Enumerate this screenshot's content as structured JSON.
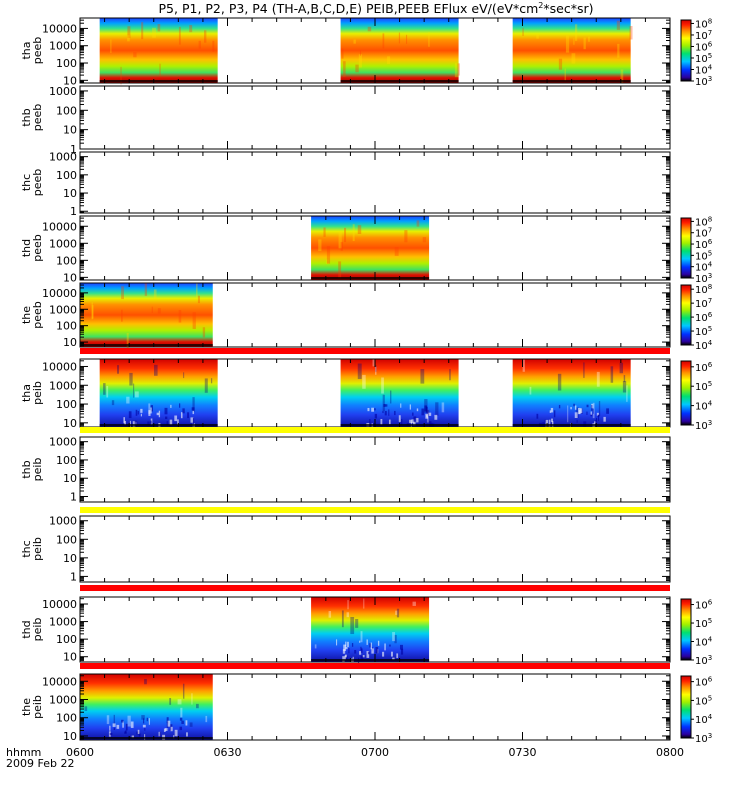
{
  "title": "P5, P1, P2, P3, P4 (TH-A,B,C,D,E) PEIB,PEEB EFlux eV/(eV*cm",
  "title_sup": "2",
  "title_end": "*sec*sr)",
  "footer": {
    "time_label": "hhmm",
    "date": "2009 Feb 22"
  },
  "chart_data": {
    "type": "heatmap",
    "title": "P5, P1, P2, P3, P4 (TH-A,B,C,D,E) PEIB,PEEB EFlux eV/(eV*cm^2*sec*sr)",
    "x_range": [
      "06:00",
      "08:00"
    ],
    "x_ticks": [
      "0600",
      "0630",
      "0700",
      "0730",
      "0800"
    ],
    "x_tick_minutes": [
      0,
      30,
      60,
      90,
      120
    ],
    "x_label": "hhmm",
    "date": "2009 Feb 22",
    "y_scale": "log",
    "colorscale": "rainbow",
    "panels": [
      {
        "name": "thapeeb",
        "lines": [
          "tha",
          "peeb"
        ],
        "yticks": [
          "10",
          "100",
          "1000",
          "10000"
        ],
        "ytick_vals": [
          10,
          100,
          1000,
          10000
        ],
        "yrange": [
          7,
          40000
        ],
        "cbar": {
          "labels": [
            "10",
            "10",
            "10",
            "10",
            "10",
            "10"
          ],
          "exps": [
            "3",
            "4",
            "5",
            "6",
            "7",
            "8"
          ],
          "range_exp": [
            3,
            8.3
          ]
        },
        "segments": [
          [
            4,
            28
          ],
          [
            53,
            77
          ],
          [
            88,
            112
          ]
        ],
        "kind": "electron"
      },
      {
        "name": "thbpeeb",
        "lines": [
          "thb",
          "peeb"
        ],
        "yticks": [
          "1",
          "10",
          "100",
          "1000"
        ],
        "ytick_vals": [
          1,
          10,
          100,
          1000
        ],
        "yrange": [
          1,
          1800
        ],
        "segments": []
      },
      {
        "name": "thcpeeb",
        "lines": [
          "thc",
          "peeb"
        ],
        "yticks": [
          "1",
          "10",
          "100",
          "1000"
        ],
        "ytick_vals": [
          1,
          10,
          100,
          1000
        ],
        "yrange": [
          0.8,
          1800
        ],
        "segments": []
      },
      {
        "name": "thdpeeb",
        "lines": [
          "thd",
          "peeb"
        ],
        "yticks": [
          "10",
          "100",
          "1000",
          "10000"
        ],
        "ytick_vals": [
          10,
          100,
          1000,
          10000
        ],
        "yrange": [
          7,
          40000
        ],
        "cbar": {
          "labels": [
            "10",
            "10",
            "10",
            "10",
            "10",
            "10"
          ],
          "exps": [
            "3",
            "4",
            "5",
            "6",
            "7",
            "8"
          ],
          "range_exp": [
            3,
            8.3
          ]
        },
        "segments": [
          [
            47,
            71
          ]
        ],
        "kind": "electron"
      },
      {
        "name": "thepeeb",
        "lines": [
          "the",
          "peeb"
        ],
        "yticks": [
          "10",
          "100",
          "1000",
          "10000"
        ],
        "ytick_vals": [
          10,
          100,
          1000,
          10000
        ],
        "yrange": [
          5,
          40000
        ],
        "cbar": {
          "labels": [
            "10",
            "10",
            "10",
            "10",
            "10"
          ],
          "exps": [
            "4",
            "5",
            "6",
            "7",
            "8"
          ],
          "range_exp": [
            4,
            8.3
          ]
        },
        "segments": [
          [
            0,
            27
          ]
        ],
        "kind": "electron"
      },
      {
        "name": "thapeib",
        "lines": [
          "tha",
          "peib"
        ],
        "yticks": [
          "10",
          "100",
          "1000",
          "10000"
        ],
        "ytick_vals": [
          10,
          100,
          1000,
          10000
        ],
        "yrange": [
          6,
          25000
        ],
        "cbar": {
          "labels": [
            "10",
            "10",
            "10",
            "10"
          ],
          "exps": [
            "3",
            "4",
            "5",
            "6"
          ],
          "range_exp": [
            3,
            6.3
          ]
        },
        "segments": [
          [
            4,
            28
          ],
          [
            53,
            77
          ],
          [
            88,
            112
          ]
        ],
        "kind": "ion",
        "bar_color": "#ff0000"
      },
      {
        "name": "thbpeib",
        "lines": [
          "thb",
          "peib"
        ],
        "yticks": [
          "1",
          "10",
          "100",
          "1000"
        ],
        "ytick_vals": [
          1,
          10,
          100,
          1000
        ],
        "yrange": [
          0.5,
          1800
        ],
        "segments": [],
        "bar_color": "#ffff00"
      },
      {
        "name": "thcpeib",
        "lines": [
          "thc",
          "peib"
        ],
        "yticks": [
          "1",
          "10",
          "100",
          "1000"
        ],
        "ytick_vals": [
          1,
          10,
          100,
          1000
        ],
        "yrange": [
          0.5,
          1800
        ],
        "segments": [],
        "bar_color": "#ffff00"
      },
      {
        "name": "thdpeib",
        "lines": [
          "thd",
          "peib"
        ],
        "yticks": [
          "10",
          "100",
          "1000",
          "10000"
        ],
        "ytick_vals": [
          10,
          100,
          1000,
          10000
        ],
        "yrange": [
          5,
          25000
        ],
        "cbar": {
          "labels": [
            "10",
            "10",
            "10",
            "10"
          ],
          "exps": [
            "3",
            "4",
            "5",
            "6"
          ],
          "range_exp": [
            3,
            6.3
          ]
        },
        "segments": [
          [
            47,
            71
          ]
        ],
        "kind": "ion",
        "bar_color": "#ff0000"
      },
      {
        "name": "thepeib",
        "lines": [
          "the",
          "peib"
        ],
        "yticks": [
          "10",
          "100",
          "1000",
          "10000"
        ],
        "ytick_vals": [
          10,
          100,
          1000,
          10000
        ],
        "yrange": [
          6,
          25000
        ],
        "cbar": {
          "labels": [
            "10",
            "10",
            "10",
            "10"
          ],
          "exps": [
            "3",
            "4",
            "5",
            "6"
          ],
          "range_exp": [
            3,
            6.3
          ]
        },
        "segments": [
          [
            0,
            27
          ]
        ],
        "kind": "ion",
        "bar_color": "#ff0000"
      }
    ]
  }
}
